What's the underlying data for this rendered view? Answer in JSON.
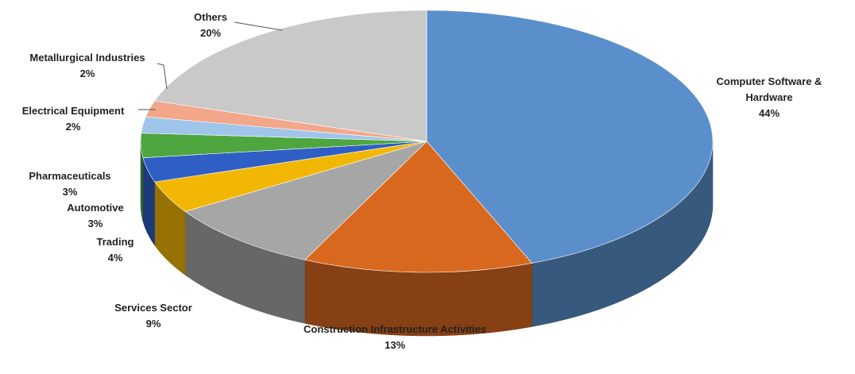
{
  "chart_data": {
    "type": "pie",
    "categories": [
      "Computer Software & Hardware",
      "Construction Infrastructure Activities",
      "Services Sector",
      "Trading",
      "Automotive",
      "Pharmaceuticals",
      "Electrical Equipment",
      "Metallurgical Industries",
      "Others"
    ],
    "values": [
      44,
      13,
      9,
      4,
      3,
      3,
      2,
      2,
      20
    ],
    "value_labels": [
      "44%",
      "13%",
      "9%",
      "4%",
      "3%",
      "3%",
      "2%",
      "2%",
      "20%"
    ],
    "colors": [
      "#5a8fcc",
      "#d9681f",
      "#a6a6a6",
      "#f2b705",
      "#2f5fc4",
      "#4ea63f",
      "#9fc5ea",
      "#f3a78a",
      "#c9c9c9"
    ]
  }
}
